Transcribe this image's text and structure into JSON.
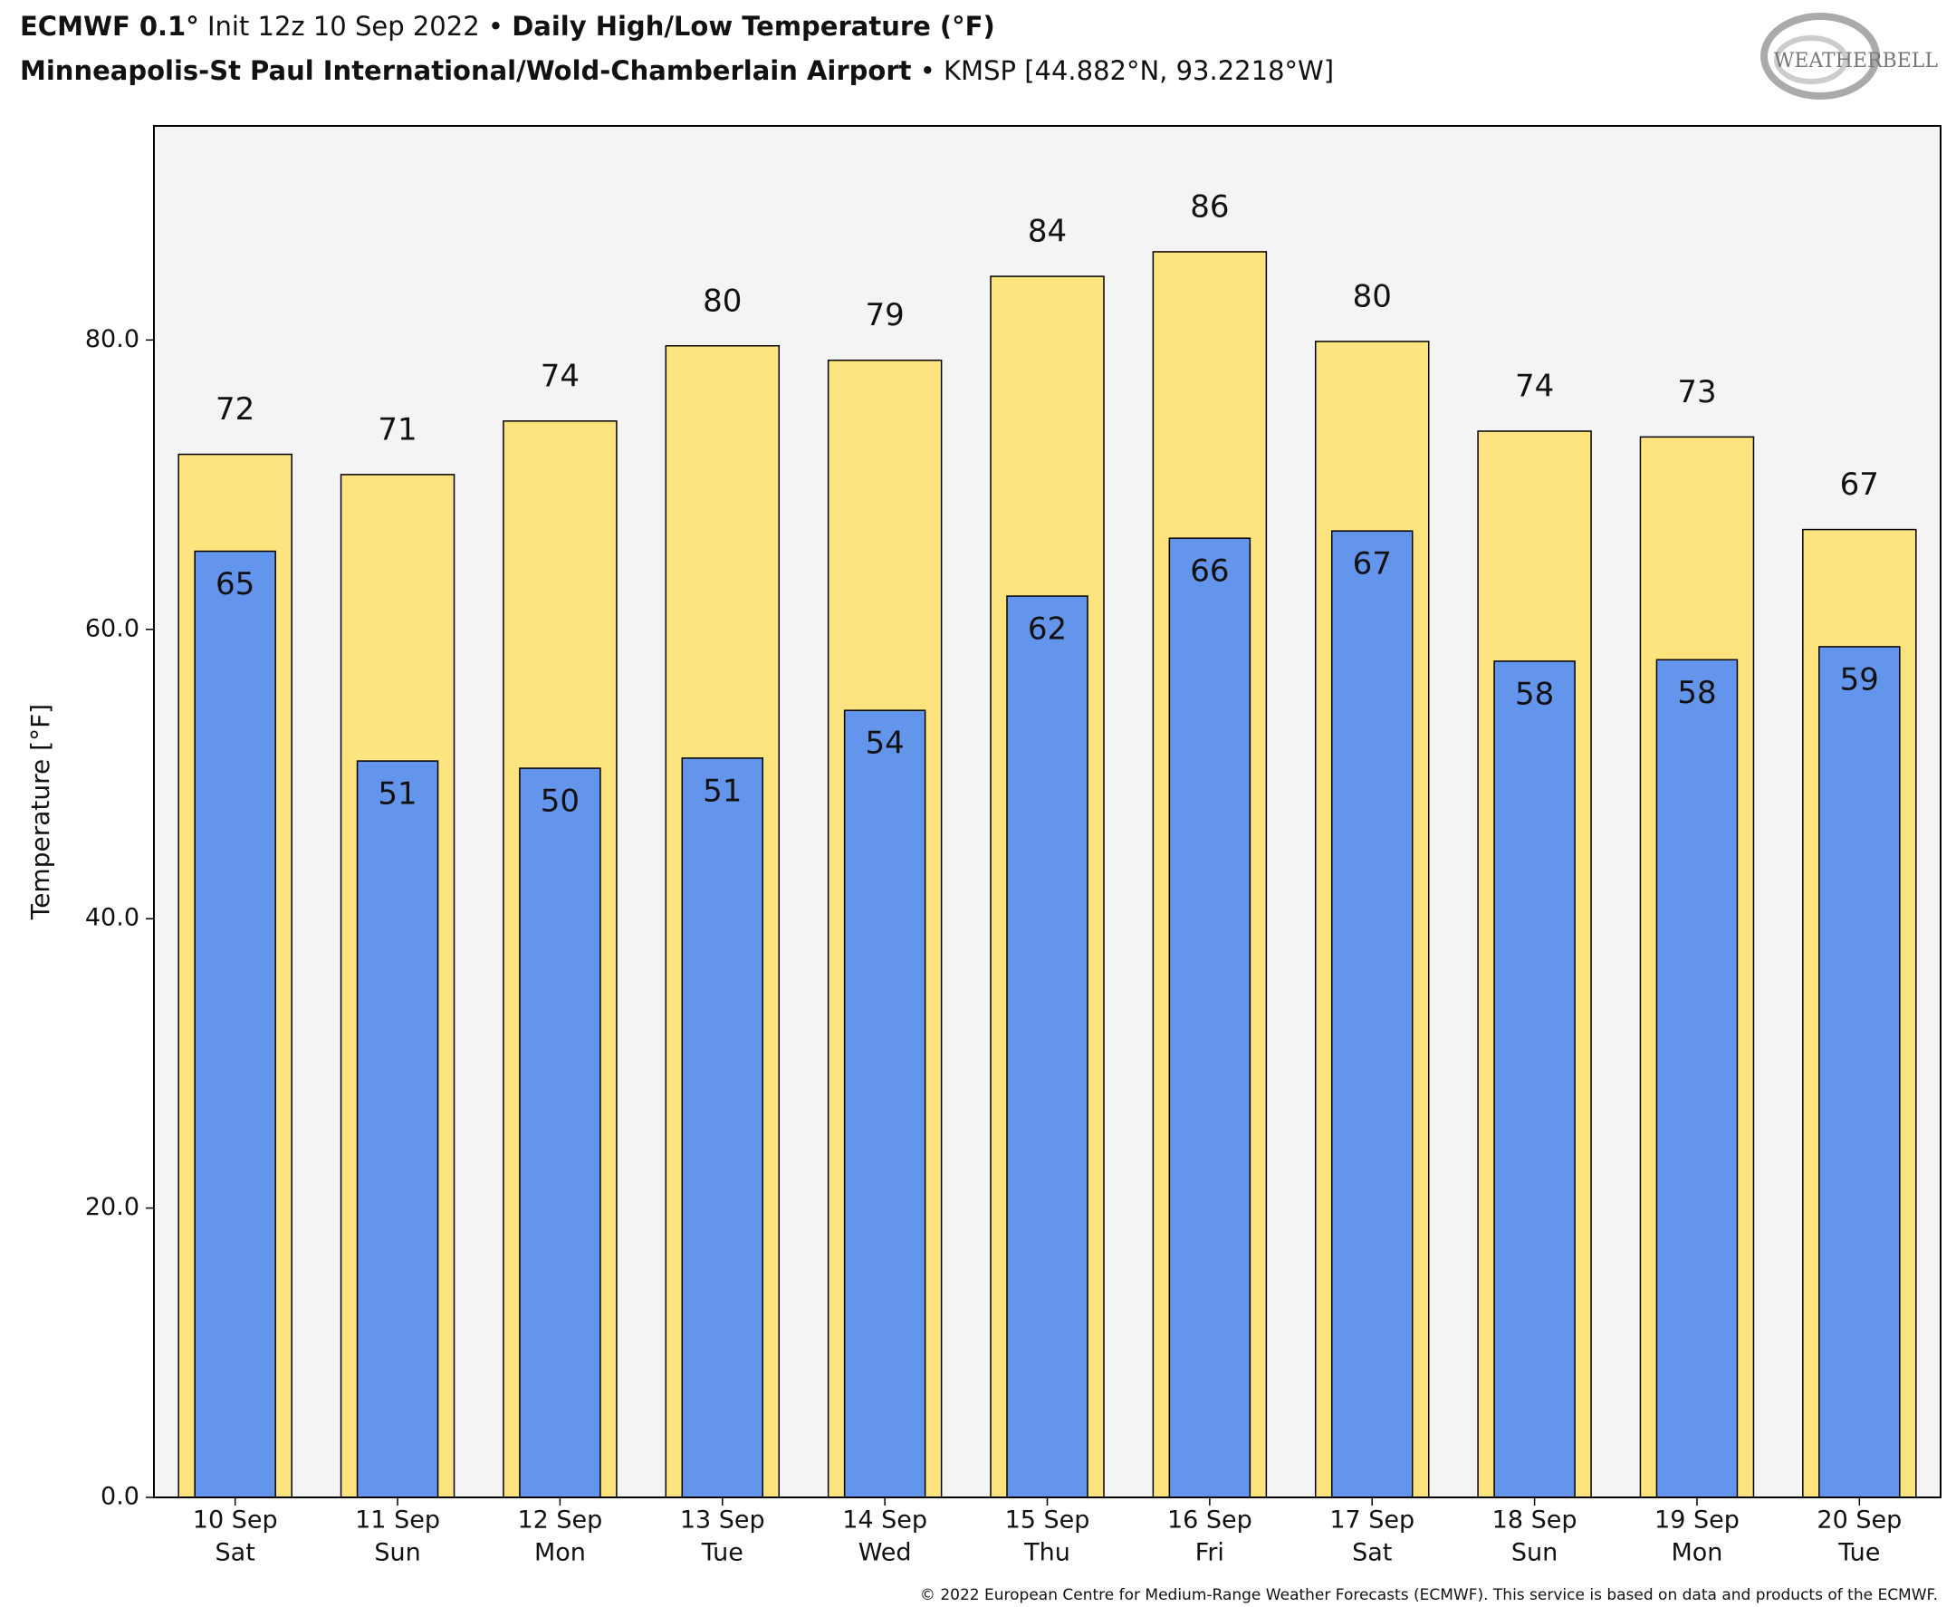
{
  "chart_data": {
    "type": "bar",
    "title_parts": [
      "ECMWF 0.1°",
      "Init 12z 10 Sep 2022 •",
      "Daily High/Low Temperature (°F)"
    ],
    "subtitle_parts": [
      "Minneapolis-St Paul International/Wold-Chamberlain Airport",
      "• KMSP [44.882°N, 93.2218°W]"
    ],
    "logo": "WEATHERBELL",
    "y_label": "Temperature [°F]",
    "footer": "© 2022 European Centre for Medium-Range Weather Forecasts (ECMWF). This service is based on data and products of the ECMWF.",
    "categories": [
      "10 Sep",
      "11 Sep",
      "12 Sep",
      "13 Sep",
      "14 Sep",
      "15 Sep",
      "16 Sep",
      "17 Sep",
      "18 Sep",
      "19 Sep",
      "20 Sep"
    ],
    "weekdays": [
      "Sat",
      "Sun",
      "Mon",
      "Tue",
      "Wed",
      "Thu",
      "Fri",
      "Sat",
      "Sun",
      "Mon",
      "Tue"
    ],
    "series": [
      {
        "color": "#fde47f",
        "values": [
          72.1,
          70.7,
          74.4,
          79.6,
          78.6,
          84.4,
          86.1,
          79.9,
          73.7,
          73.3,
          66.9
        ],
        "value_labels": [
          "72",
          "71",
          "74",
          "80",
          "79",
          "84",
          "86",
          "80",
          "74",
          "73",
          "67"
        ]
      },
      {
        "color": "#6495ed",
        "values": [
          65.4,
          50.9,
          50.4,
          51.1,
          54.4,
          62.3,
          66.3,
          66.8,
          57.8,
          57.9,
          58.8
        ],
        "value_labels": [
          "65",
          "51",
          "50",
          "51",
          "54",
          "62",
          "66",
          "67",
          "58",
          "58",
          "59"
        ]
      }
    ],
    "ylim": [
      0,
      94.8
    ],
    "yticks": [
      {
        "value": 0,
        "label": "0.0"
      },
      {
        "value": 20,
        "label": "20.0"
      },
      {
        "value": 40,
        "label": "40.0"
      },
      {
        "value": 60,
        "label": "60.0"
      },
      {
        "value": 80,
        "label": "80.0"
      }
    ],
    "background": "#f5f4f4"
  }
}
